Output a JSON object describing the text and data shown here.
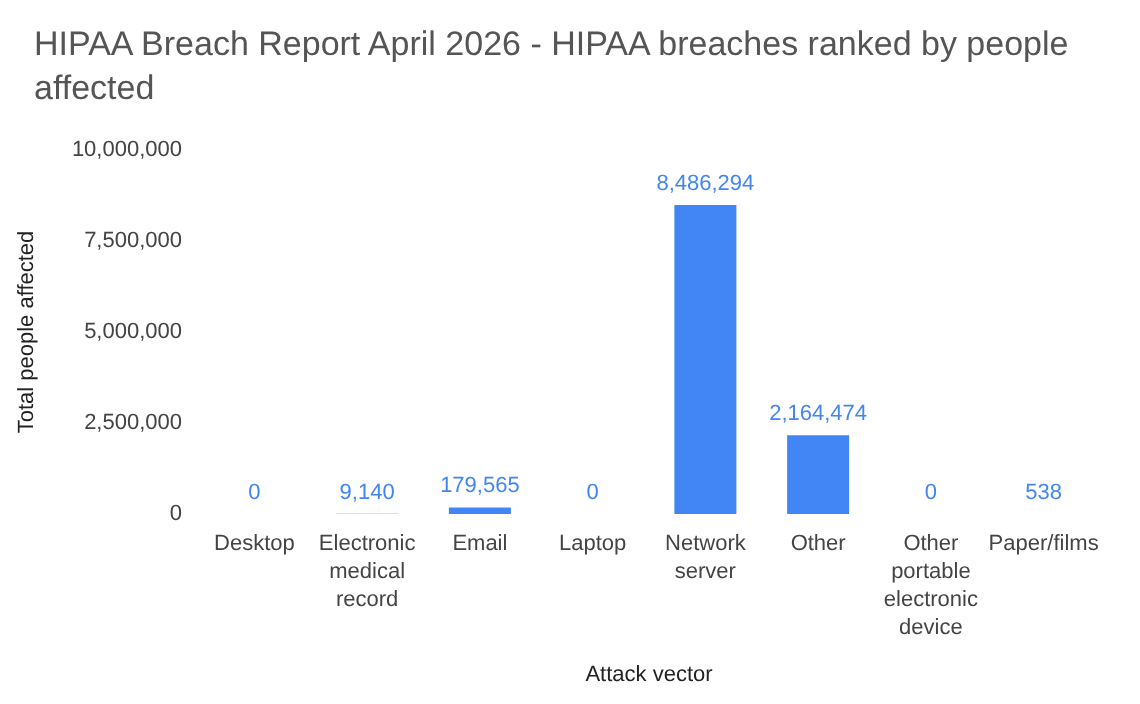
{
  "chart_data": {
    "type": "bar",
    "title": "HIPAA Breach Report April 2026 - HIPAA breaches ranked by people affected",
    "xlabel": "Attack vector",
    "ylabel": "Total people affected",
    "categories": [
      "Desktop",
      "Electronic medical record",
      "Email",
      "Laptop",
      "Network server",
      "Other",
      "Other portable electronic device",
      "Paper/films"
    ],
    "values": [
      0,
      9140,
      179565,
      0,
      8486294,
      2164474,
      0,
      538
    ],
    "value_labels": [
      "0",
      "9,140",
      "179,565",
      "0",
      "8,486,294",
      "2,164,474",
      "0",
      "538"
    ],
    "color": "#4285f4",
    "ylim": [
      0,
      10000000
    ],
    "yticks": [
      {
        "value": 0,
        "label": "0"
      },
      {
        "value": 2500000,
        "label": "2,500,000"
      },
      {
        "value": 5000000,
        "label": "5,000,000"
      },
      {
        "value": 7500000,
        "label": "7,500,000"
      },
      {
        "value": 10000000,
        "label": "10,000,000"
      }
    ],
    "grid": false
  }
}
